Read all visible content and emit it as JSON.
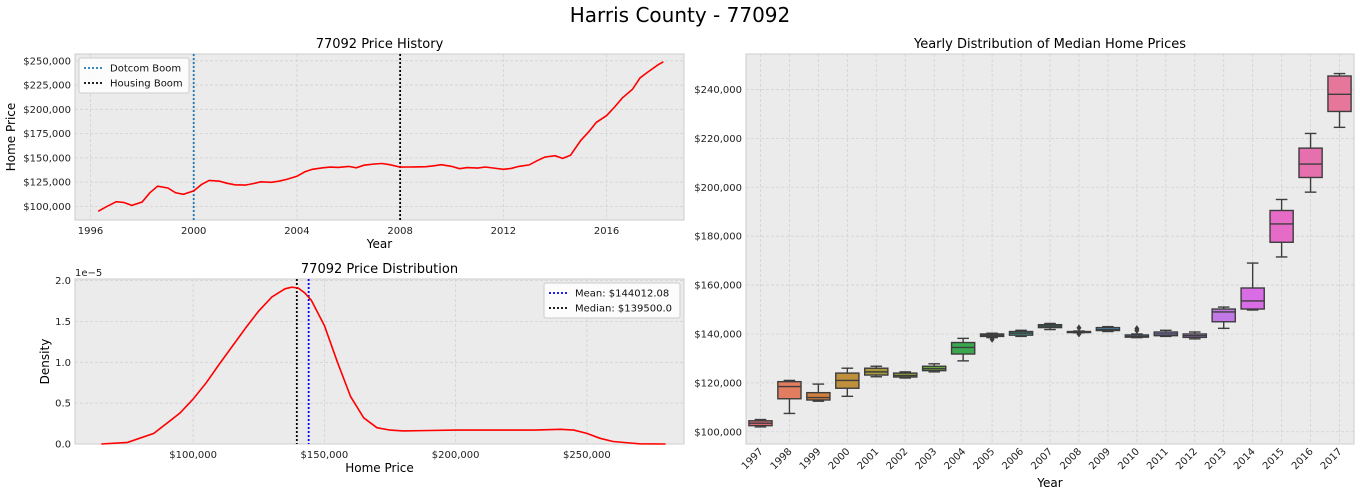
{
  "suptitle": "Harris County - 77092",
  "chart_data": [
    {
      "type": "line",
      "title": "77092 Price History",
      "xlabel": "Year",
      "ylabel": "Home Price",
      "xlim": [
        1995.4,
        2019.0
      ],
      "ylim": [
        86000,
        257000
      ],
      "xticks": [
        1996,
        2000,
        2004,
        2008,
        2012,
        2016
      ],
      "xtick_labels": [
        "1996",
        "2000",
        "2004",
        "2008",
        "2012",
        "2016"
      ],
      "yticks": [
        100000,
        125000,
        150000,
        175000,
        200000,
        225000,
        250000
      ],
      "ytick_labels": [
        "$100,000",
        "$125,000",
        "$150,000",
        "$175,000",
        "$200,000",
        "$225,000",
        "$250,000"
      ],
      "grid": true,
      "legend": "top-left",
      "series": [
        {
          "name": "",
          "color": "#ff0000",
          "x": [
            1996.3,
            1996.6,
            1997.0,
            1997.3,
            1997.6,
            1998.0,
            1998.3,
            1998.6,
            1999.0,
            1999.3,
            1999.6,
            2000.0,
            2000.3,
            2000.6,
            2001.0,
            2001.3,
            2001.6,
            2002.0,
            2002.3,
            2002.6,
            2003.0,
            2003.3,
            2003.6,
            2004.0,
            2004.3,
            2004.6,
            2005.0,
            2005.3,
            2005.6,
            2006.0,
            2006.3,
            2006.6,
            2007.0,
            2007.3,
            2007.6,
            2008.0,
            2008.3,
            2008.6,
            2009.0,
            2009.3,
            2009.6,
            2010.0,
            2010.3,
            2010.6,
            2011.0,
            2011.3,
            2011.6,
            2012.0,
            2012.3,
            2012.6,
            2013.0,
            2013.3,
            2013.6,
            2014.0,
            2014.3,
            2014.6,
            2015.0,
            2015.3,
            2015.6,
            2016.0,
            2016.3,
            2016.6,
            2017.0,
            2017.3,
            2017.6,
            2018.0,
            2018.2
          ],
          "y": [
            95000,
            99500,
            104800,
            104000,
            101000,
            104500,
            114000,
            120800,
            119000,
            114000,
            112500,
            116000,
            122500,
            126800,
            126000,
            123800,
            122300,
            122000,
            123500,
            125300,
            124800,
            126000,
            127800,
            131000,
            135500,
            138200,
            139800,
            140500,
            140200,
            141200,
            139800,
            142500,
            143700,
            144200,
            143000,
            140500,
            140600,
            140700,
            140900,
            141800,
            143000,
            141200,
            138800,
            140000,
            139500,
            140600,
            139600,
            138200,
            139200,
            141200,
            142800,
            147000,
            150800,
            152200,
            149500,
            152800,
            168000,
            176500,
            186500,
            193500,
            202000,
            211500,
            220500,
            232500,
            238500,
            246000,
            249000
          ]
        }
      ],
      "annotations": [
        {
          "type": "vline",
          "x": 2000,
          "label": "Dotcom Boom",
          "color": "#1f77b4",
          "style": "dotted"
        },
        {
          "type": "vline",
          "x": 2008,
          "label": "Housing Boom",
          "color": "#000000",
          "style": "dotted"
        }
      ]
    },
    {
      "type": "line",
      "title": "77092 Price Distribution",
      "xlabel": "Home Price",
      "ylabel": "Density",
      "offset_text": "1e−5",
      "xlim": [
        55000,
        287000
      ],
      "ylim": [
        0,
        2.02
      ],
      "xticks": [
        100000,
        150000,
        200000,
        250000
      ],
      "xtick_labels": [
        "$100,000",
        "$150,000",
        "$200,000",
        "$250,000"
      ],
      "yticks": [
        0.0,
        0.5,
        1.0,
        1.5,
        2.0
      ],
      "ytick_labels": [
        "0.0",
        "0.5",
        "1.0",
        "1.5",
        "2.0"
      ],
      "grid": true,
      "legend": "top-right",
      "series": [
        {
          "name": "",
          "color": "#ff0000",
          "x": [
            65000,
            75000,
            85000,
            95000,
            100000,
            105000,
            110000,
            115000,
            120000,
            125000,
            130000,
            135000,
            137500,
            140000,
            142500,
            145000,
            150000,
            155000,
            160000,
            165000,
            170000,
            175000,
            180000,
            190000,
            200000,
            210000,
            220000,
            230000,
            240000,
            245000,
            250000,
            255000,
            260000,
            270000,
            280000
          ],
          "y": [
            0.0,
            0.02,
            0.13,
            0.38,
            0.55,
            0.75,
            0.98,
            1.2,
            1.42,
            1.63,
            1.8,
            1.9,
            1.92,
            1.91,
            1.85,
            1.76,
            1.45,
            1.0,
            0.58,
            0.32,
            0.2,
            0.17,
            0.16,
            0.165,
            0.17,
            0.17,
            0.17,
            0.17,
            0.18,
            0.17,
            0.13,
            0.07,
            0.03,
            0.003,
            0.0
          ]
        }
      ],
      "annotations": [
        {
          "type": "vline",
          "x": 144012.08,
          "label": "Mean: $144012.08",
          "color": "#0000ff",
          "style": "dotted"
        },
        {
          "type": "vline",
          "x": 139500.0,
          "label": "Median: $139500.0",
          "color": "#000000",
          "style": "dotted"
        }
      ]
    },
    {
      "type": "box",
      "title": "Yearly Distribution of Median Home Prices",
      "xlabel": "Year",
      "ylabel": "",
      "ylim": [
        95000,
        254500
      ],
      "yticks": [
        100000,
        120000,
        140000,
        160000,
        180000,
        200000,
        220000,
        240000
      ],
      "ytick_labels": [
        "$100,000",
        "$120,000",
        "$140,000",
        "$160,000",
        "$180,000",
        "$200,000",
        "$220,000",
        "$240,000"
      ],
      "grid": true,
      "categories": [
        "1997",
        "1998",
        "1999",
        "2000",
        "2001",
        "2002",
        "2003",
        "2004",
        "2005",
        "2006",
        "2007",
        "2008",
        "2009",
        "2010",
        "2011",
        "2012",
        "2013",
        "2014",
        "2015",
        "2016",
        "2017"
      ],
      "colors": [
        "#e16873",
        "#e27d60",
        "#d27f3d",
        "#be8f3c",
        "#a99a3b",
        "#8f9f3b",
        "#6aa63b",
        "#3ba84e",
        "#3ba67e",
        "#3da495",
        "#3ea3a6",
        "#3fa0bb",
        "#44a0d4",
        "#5c97e0",
        "#8d89e5",
        "#b37ee6",
        "#c278e6",
        "#d86de5",
        "#e56bc7",
        "#e670ad",
        "#e6779b"
      ],
      "boxes": [
        {
          "whislo": 102000,
          "q1": 102500,
          "med": 103500,
          "q3": 104500,
          "whishi": 105000,
          "fliers": []
        },
        {
          "whislo": 107500,
          "q1": 113500,
          "med": 118500,
          "q3": 120500,
          "whishi": 121000,
          "fliers": []
        },
        {
          "whislo": 112500,
          "q1": 113000,
          "med": 114000,
          "q3": 116000,
          "whishi": 119500,
          "fliers": []
        },
        {
          "whislo": 114500,
          "q1": 117800,
          "med": 121000,
          "q3": 124000,
          "whishi": 126000,
          "fliers": []
        },
        {
          "whislo": 122500,
          "q1": 123200,
          "med": 124500,
          "q3": 126000,
          "whishi": 126800,
          "fliers": []
        },
        {
          "whislo": 122000,
          "q1": 122400,
          "med": 123000,
          "q3": 124000,
          "whishi": 124500,
          "fliers": []
        },
        {
          "whislo": 124500,
          "q1": 125000,
          "med": 125800,
          "q3": 126800,
          "whishi": 127800,
          "fliers": []
        },
        {
          "whislo": 129000,
          "q1": 131800,
          "med": 134500,
          "q3": 136500,
          "whishi": 138200,
          "fliers": []
        },
        {
          "whislo": 138500,
          "q1": 139000,
          "med": 139500,
          "q3": 140000,
          "whishi": 140300,
          "fliers": [
            137800
          ]
        },
        {
          "whislo": 139000,
          "q1": 139500,
          "med": 140300,
          "q3": 141000,
          "whishi": 141500,
          "fliers": []
        },
        {
          "whislo": 141800,
          "q1": 142600,
          "med": 143200,
          "q3": 143800,
          "whishi": 144300,
          "fliers": []
        },
        {
          "whislo": 140500,
          "q1": 140600,
          "med": 140800,
          "q3": 141000,
          "whishi": 141200,
          "fliers": [
            142500,
            140000
          ]
        },
        {
          "whislo": 141000,
          "q1": 141400,
          "med": 141800,
          "q3": 142600,
          "whishi": 143000,
          "fliers": []
        },
        {
          "whislo": 138500,
          "q1": 138700,
          "med": 139000,
          "q3": 139600,
          "whishi": 140000,
          "fliers": [
            142200,
            141400
          ]
        },
        {
          "whislo": 139000,
          "q1": 139300,
          "med": 140000,
          "q3": 140800,
          "whishi": 141500,
          "fliers": []
        },
        {
          "whislo": 138000,
          "q1": 138600,
          "med": 139300,
          "q3": 140000,
          "whishi": 140800,
          "fliers": []
        },
        {
          "whislo": 142300,
          "q1": 145000,
          "med": 149000,
          "q3": 150200,
          "whishi": 151000,
          "fliers": []
        },
        {
          "whislo": 149800,
          "q1": 150200,
          "med": 153500,
          "q3": 158800,
          "whishi": 169000,
          "fliers": []
        },
        {
          "whislo": 171500,
          "q1": 177500,
          "med": 185000,
          "q3": 190500,
          "whishi": 195000,
          "fliers": []
        },
        {
          "whislo": 198000,
          "q1": 204000,
          "med": 209500,
          "q3": 216000,
          "whishi": 222000,
          "fliers": []
        },
        {
          "whislo": 224500,
          "q1": 231000,
          "med": 238000,
          "q3": 245500,
          "whishi": 246500,
          "fliers": []
        }
      ]
    }
  ]
}
